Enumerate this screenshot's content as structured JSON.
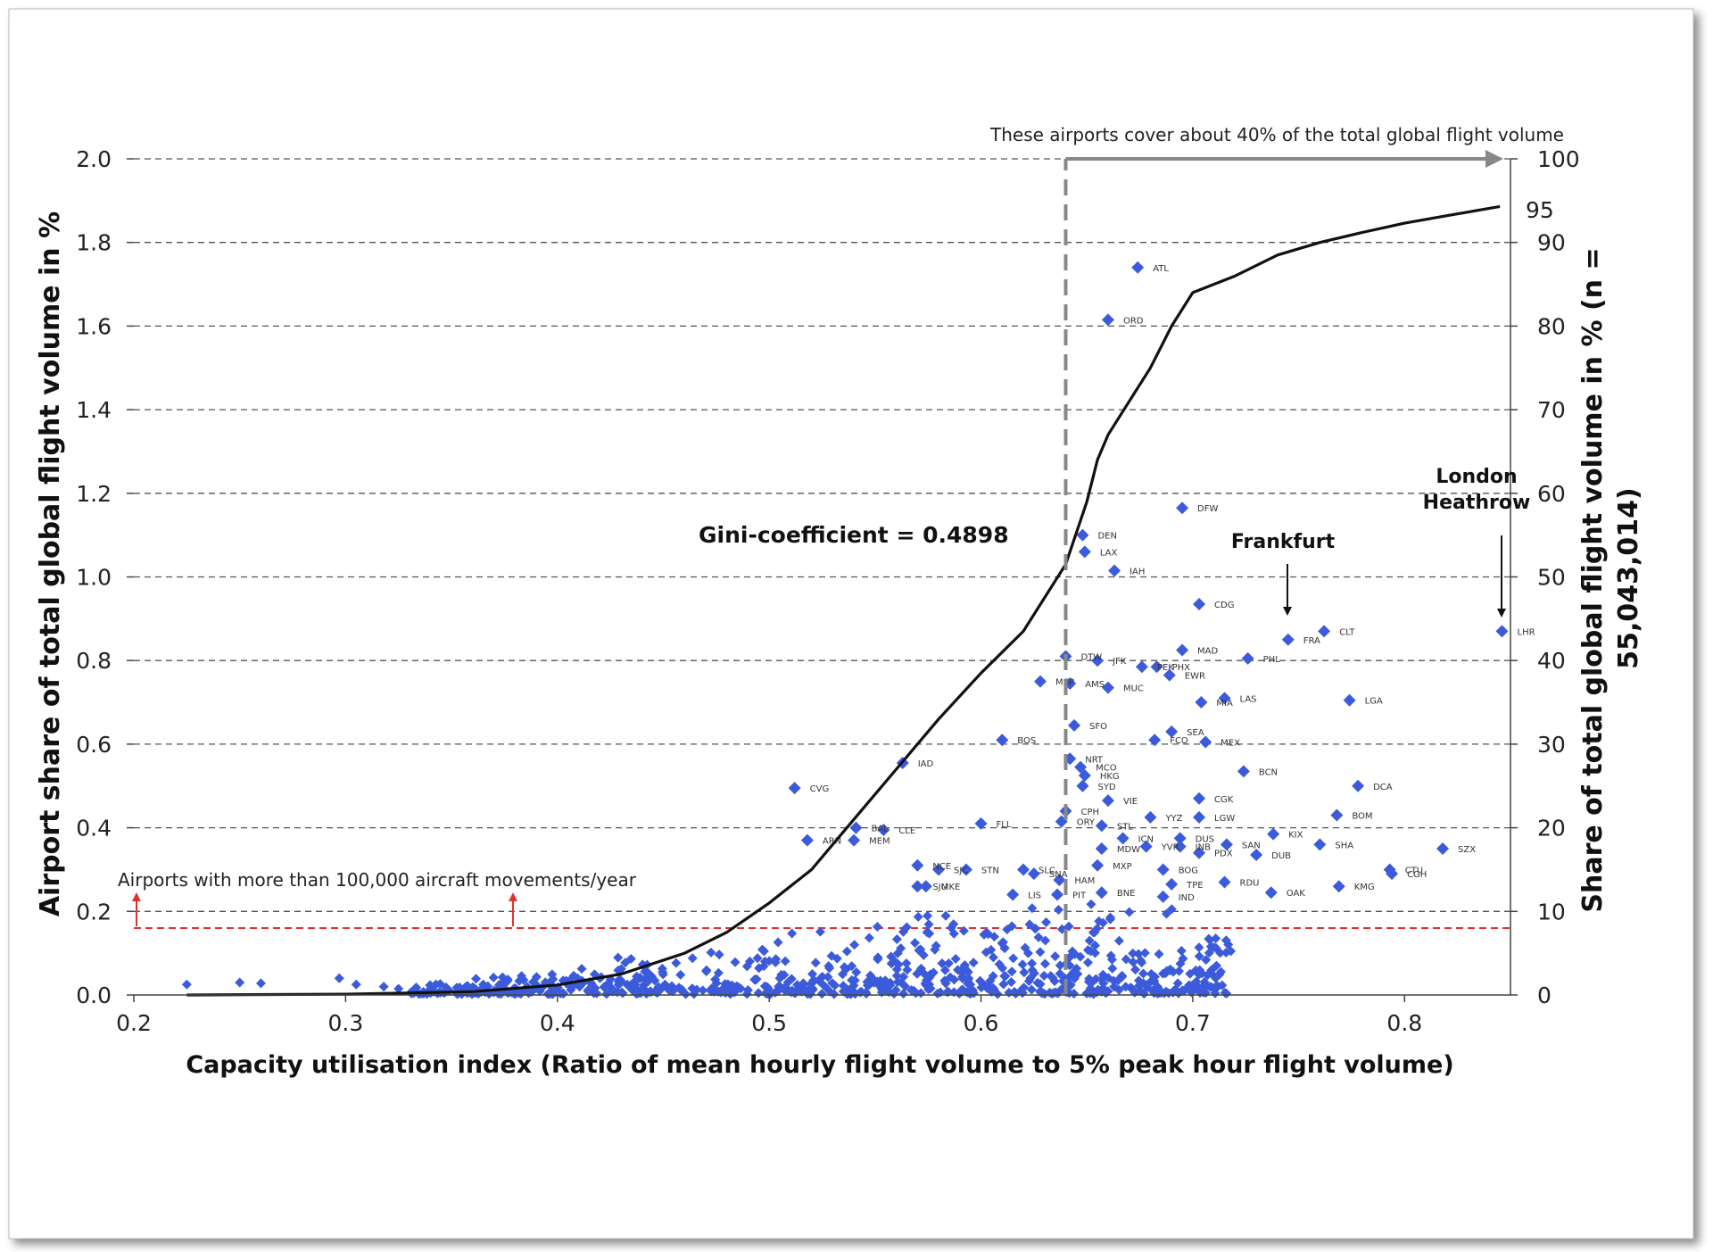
{
  "chart_data": {
    "type": "scatter",
    "xlabel": "Capacity utilisation index (Ratio of mean hourly flight volume to 5% peak hour flight volume)",
    "ylabel": "Airport share of total global flight volume in %",
    "ylabel2": "Share of total global flight volume in % (n = 55,043,014)",
    "xlim": [
      0.2,
      0.85
    ],
    "ylim": [
      0,
      2.0
    ],
    "ylim2": [
      0,
      100
    ],
    "x_ticks": [
      "0.2",
      "0.3",
      "0.4",
      "0.5",
      "0.6",
      "0.7",
      "0.8"
    ],
    "y_ticks": [
      "0.0",
      "0.2",
      "0.4",
      "0.6",
      "0.8",
      "1.0",
      "1.2",
      "1.4",
      "1.6",
      "1.8",
      "2.0"
    ],
    "y2_ticks": [
      "0",
      "10",
      "20",
      "30",
      "40",
      "50",
      "60",
      "70",
      "80",
      "90",
      "100"
    ],
    "grid": "horizontal dashed",
    "colors": {
      "points": "#3b5bdb",
      "curve": "#111111",
      "threshold": "#e03131",
      "marker": "#888888"
    },
    "annotations": {
      "gini": "Gini-coefficient = 0.4898",
      "coverage": "These airports cover about 40% of the total global flight volume",
      "threshold": "Airports with more than 100,000 aircraft movements/year",
      "frankfurt": "Frankfurt",
      "heathrow_line1": "London",
      "heathrow_line2": "Heathrow",
      "curve_end": "95"
    },
    "threshold_y": 0.16,
    "coverage_x": 0.64,
    "labeled_points": [
      {
        "code": "ATL",
        "x": 0.674,
        "y": 1.74
      },
      {
        "code": "ORD",
        "x": 0.66,
        "y": 1.615
      },
      {
        "code": "DFW",
        "x": 0.695,
        "y": 1.165
      },
      {
        "code": "DEN",
        "x": 0.648,
        "y": 1.1
      },
      {
        "code": "LAX",
        "x": 0.649,
        "y": 1.06
      },
      {
        "code": "IAH",
        "x": 0.663,
        "y": 1.015
      },
      {
        "code": "CDG",
        "x": 0.703,
        "y": 0.935
      },
      {
        "code": "CLT",
        "x": 0.762,
        "y": 0.87
      },
      {
        "code": "FRA",
        "x": 0.745,
        "y": 0.85
      },
      {
        "code": "LHR",
        "x": 0.846,
        "y": 0.87
      },
      {
        "code": "MAD",
        "x": 0.695,
        "y": 0.825
      },
      {
        "code": "DTW",
        "x": 0.64,
        "y": 0.81
      },
      {
        "code": "PHL",
        "x": 0.726,
        "y": 0.805
      },
      {
        "code": "JFK",
        "x": 0.655,
        "y": 0.8
      },
      {
        "code": "PEK",
        "x": 0.676,
        "y": 0.785
      },
      {
        "code": "PHX",
        "x": 0.683,
        "y": 0.785
      },
      {
        "code": "EWR",
        "x": 0.689,
        "y": 0.765
      },
      {
        "code": "MSP",
        "x": 0.628,
        "y": 0.75
      },
      {
        "code": "AMS",
        "x": 0.642,
        "y": 0.745
      },
      {
        "code": "MUC",
        "x": 0.66,
        "y": 0.735
      },
      {
        "code": "LAS",
        "x": 0.715,
        "y": 0.71
      },
      {
        "code": "LGA",
        "x": 0.774,
        "y": 0.705
      },
      {
        "code": "MIA",
        "x": 0.704,
        "y": 0.7
      },
      {
        "code": "SFO",
        "x": 0.644,
        "y": 0.645
      },
      {
        "code": "SEA",
        "x": 0.69,
        "y": 0.63
      },
      {
        "code": "BOS",
        "x": 0.61,
        "y": 0.61
      },
      {
        "code": "FCO",
        "x": 0.682,
        "y": 0.61
      },
      {
        "code": "MEX",
        "x": 0.706,
        "y": 0.605
      },
      {
        "code": "IAD",
        "x": 0.563,
        "y": 0.555
      },
      {
        "code": "NRT",
        "x": 0.642,
        "y": 0.565
      },
      {
        "code": "MCO",
        "x": 0.647,
        "y": 0.545
      },
      {
        "code": "BCN",
        "x": 0.724,
        "y": 0.535
      },
      {
        "code": "HKG",
        "x": 0.649,
        "y": 0.525
      },
      {
        "code": "SYD",
        "x": 0.648,
        "y": 0.5
      },
      {
        "code": "CVG",
        "x": 0.512,
        "y": 0.495
      },
      {
        "code": "DCA",
        "x": 0.778,
        "y": 0.5
      },
      {
        "code": "VIE",
        "x": 0.66,
        "y": 0.465
      },
      {
        "code": "CGK",
        "x": 0.703,
        "y": 0.47
      },
      {
        "code": "CPH",
        "x": 0.64,
        "y": 0.44
      },
      {
        "code": "BOM",
        "x": 0.768,
        "y": 0.43
      },
      {
        "code": "YYZ",
        "x": 0.68,
        "y": 0.425
      },
      {
        "code": "LGW",
        "x": 0.703,
        "y": 0.425
      },
      {
        "code": "FLL",
        "x": 0.6,
        "y": 0.41
      },
      {
        "code": "ORY",
        "x": 0.638,
        "y": 0.415
      },
      {
        "code": "STL",
        "x": 0.657,
        "y": 0.405
      },
      {
        "code": "BAL",
        "x": 0.541,
        "y": 0.4
      },
      {
        "code": "CLE",
        "x": 0.554,
        "y": 0.395
      },
      {
        "code": "ICN",
        "x": 0.667,
        "y": 0.375
      },
      {
        "code": "DUS",
        "x": 0.694,
        "y": 0.375
      },
      {
        "code": "ARN",
        "x": 0.518,
        "y": 0.37
      },
      {
        "code": "MEM",
        "x": 0.54,
        "y": 0.37
      },
      {
        "code": "MDW",
        "x": 0.657,
        "y": 0.35
      },
      {
        "code": "YVR",
        "x": 0.678,
        "y": 0.355
      },
      {
        "code": "JNB",
        "x": 0.694,
        "y": 0.355
      },
      {
        "code": "SAN",
        "x": 0.716,
        "y": 0.36
      },
      {
        "code": "KIX",
        "x": 0.738,
        "y": 0.385
      },
      {
        "code": "SHA",
        "x": 0.76,
        "y": 0.36
      },
      {
        "code": "SZX",
        "x": 0.818,
        "y": 0.35
      },
      {
        "code": "PDX",
        "x": 0.703,
        "y": 0.34
      },
      {
        "code": "DUB",
        "x": 0.73,
        "y": 0.335
      },
      {
        "code": "NCE",
        "x": 0.57,
        "y": 0.31
      },
      {
        "code": "STN",
        "x": 0.593,
        "y": 0.3
      },
      {
        "code": "SJC",
        "x": 0.58,
        "y": 0.3
      },
      {
        "code": "SLC",
        "x": 0.62,
        "y": 0.3
      },
      {
        "code": "MXP",
        "x": 0.655,
        "y": 0.31
      },
      {
        "code": "BOG",
        "x": 0.686,
        "y": 0.3
      },
      {
        "code": "CTU",
        "x": 0.793,
        "y": 0.3
      },
      {
        "code": "CGH",
        "x": 0.794,
        "y": 0.29
      },
      {
        "code": "SNA",
        "x": 0.625,
        "y": 0.29
      },
      {
        "code": "HAM",
        "x": 0.637,
        "y": 0.275
      },
      {
        "code": "RDU",
        "x": 0.715,
        "y": 0.27
      },
      {
        "code": "TPE",
        "x": 0.69,
        "y": 0.265
      },
      {
        "code": "KMG",
        "x": 0.769,
        "y": 0.26
      },
      {
        "code": "SJU",
        "x": 0.57,
        "y": 0.26
      },
      {
        "code": "MKE",
        "x": 0.574,
        "y": 0.26
      },
      {
        "code": "OAK",
        "x": 0.737,
        "y": 0.245
      },
      {
        "code": "BNE",
        "x": 0.657,
        "y": 0.245
      },
      {
        "code": "LIS",
        "x": 0.615,
        "y": 0.24
      },
      {
        "code": "PIT",
        "x": 0.636,
        "y": 0.24
      },
      {
        "code": "IND",
        "x": 0.686,
        "y": 0.235
      }
    ]
  }
}
